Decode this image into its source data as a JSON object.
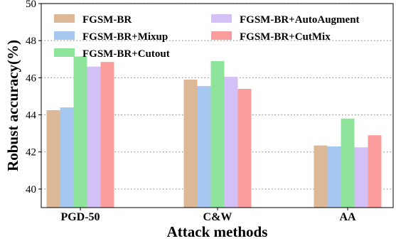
{
  "chart_data": {
    "type": "bar",
    "categories": [
      "PGD-50",
      "C&W",
      "AA"
    ],
    "series": [
      {
        "name": "FGSM-BR",
        "color": "#dcb896",
        "values": [
          44.25,
          45.9,
          42.35
        ]
      },
      {
        "name": "FGSM-BR+Mixup",
        "color": "#a6c8f0",
        "values": [
          44.4,
          45.55,
          42.3
        ]
      },
      {
        "name": "FGSM-BR+Cutout",
        "color": "#8ee49a",
        "values": [
          47.15,
          46.9,
          43.8
        ]
      },
      {
        "name": "FGSM-BR+AutoAugment",
        "color": "#d3c0f7",
        "values": [
          46.6,
          46.05,
          42.25
        ]
      },
      {
        "name": "FGSM-BR+CutMix",
        "color": "#fc9d9d",
        "values": [
          46.85,
          45.4,
          42.9
        ]
      }
    ],
    "xlabel": "Attack methods",
    "ylabel": "Robust accuracy(%)",
    "ylim": [
      39,
      50
    ],
    "yticks": [
      40,
      42,
      44,
      46,
      48,
      50
    ],
    "grid": "horizontal-dotted",
    "legend": "top, two columns"
  }
}
